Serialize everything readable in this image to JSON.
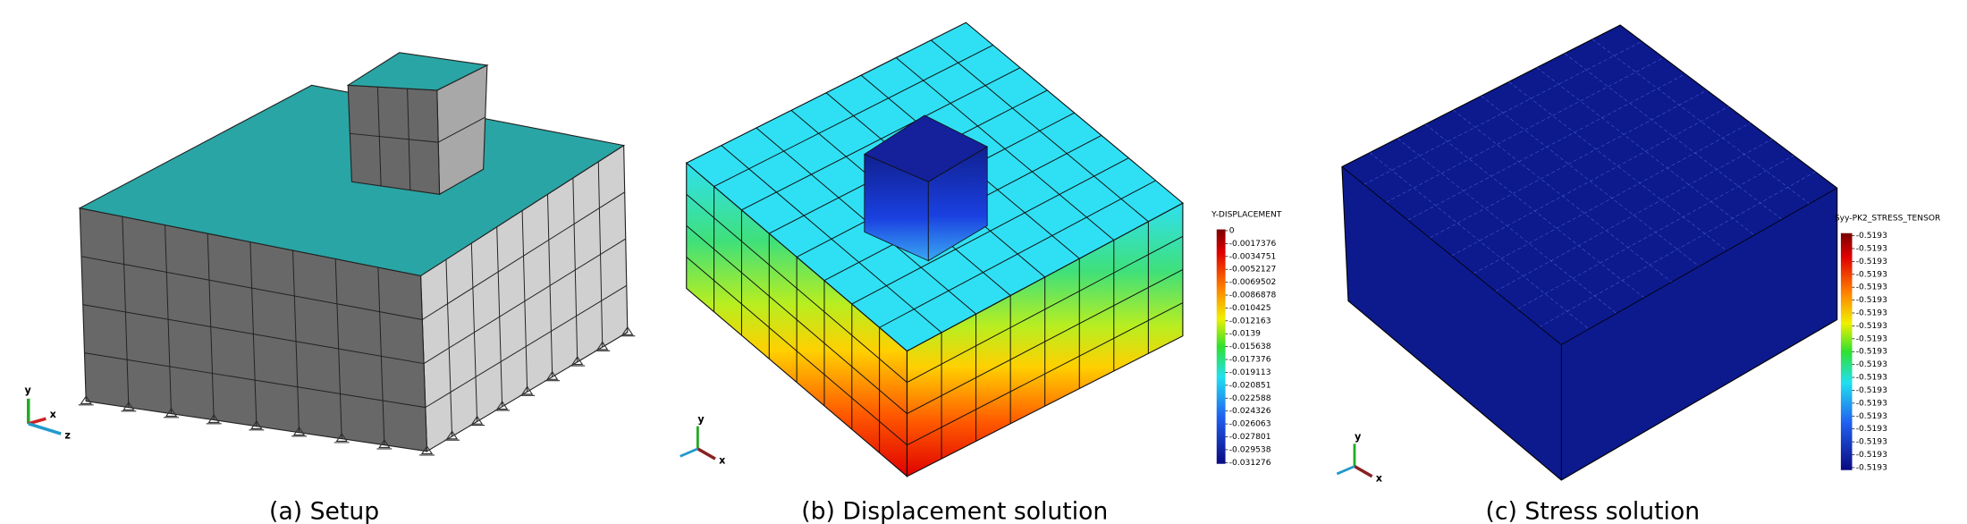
{
  "panels": [
    {
      "caption": "(a) Setup",
      "axes": [
        "y",
        "x",
        "z"
      ]
    },
    {
      "caption": "(b) Displacement solution",
      "axes": [
        "y",
        "x"
      ],
      "colorbar": {
        "title": "Y-DISPLACEMENT",
        "labels": [
          "0",
          "-0.0017376",
          "-0.0034751",
          "-0.0052127",
          "-0.0069502",
          "-0.0086878",
          "-0.010425",
          "-0.012163",
          "-0.0139",
          "-0.015638",
          "-0.017376",
          "-0.019113",
          "-0.020851",
          "-0.022588",
          "-0.024326",
          "-0.026063",
          "-0.027801",
          "-0.029538",
          "-0.031276"
        ]
      }
    },
    {
      "caption": "(c) Stress solution",
      "axes": [
        "y",
        "x"
      ],
      "colorbar": {
        "title": "Syy-PK2_STRESS_TENSOR",
        "labels": [
          "-0.5193",
          "-0.5193",
          "-0.5193",
          "-0.5193",
          "-0.5193",
          "-0.5193",
          "-0.5193",
          "-0.5193",
          "-0.5193",
          "-0.5193",
          "-0.5193",
          "-0.5193",
          "-0.5193",
          "-0.5193",
          "-0.5193",
          "-0.5193",
          "-0.5193",
          "-0.5193",
          "-0.5193"
        ]
      }
    }
  ]
}
